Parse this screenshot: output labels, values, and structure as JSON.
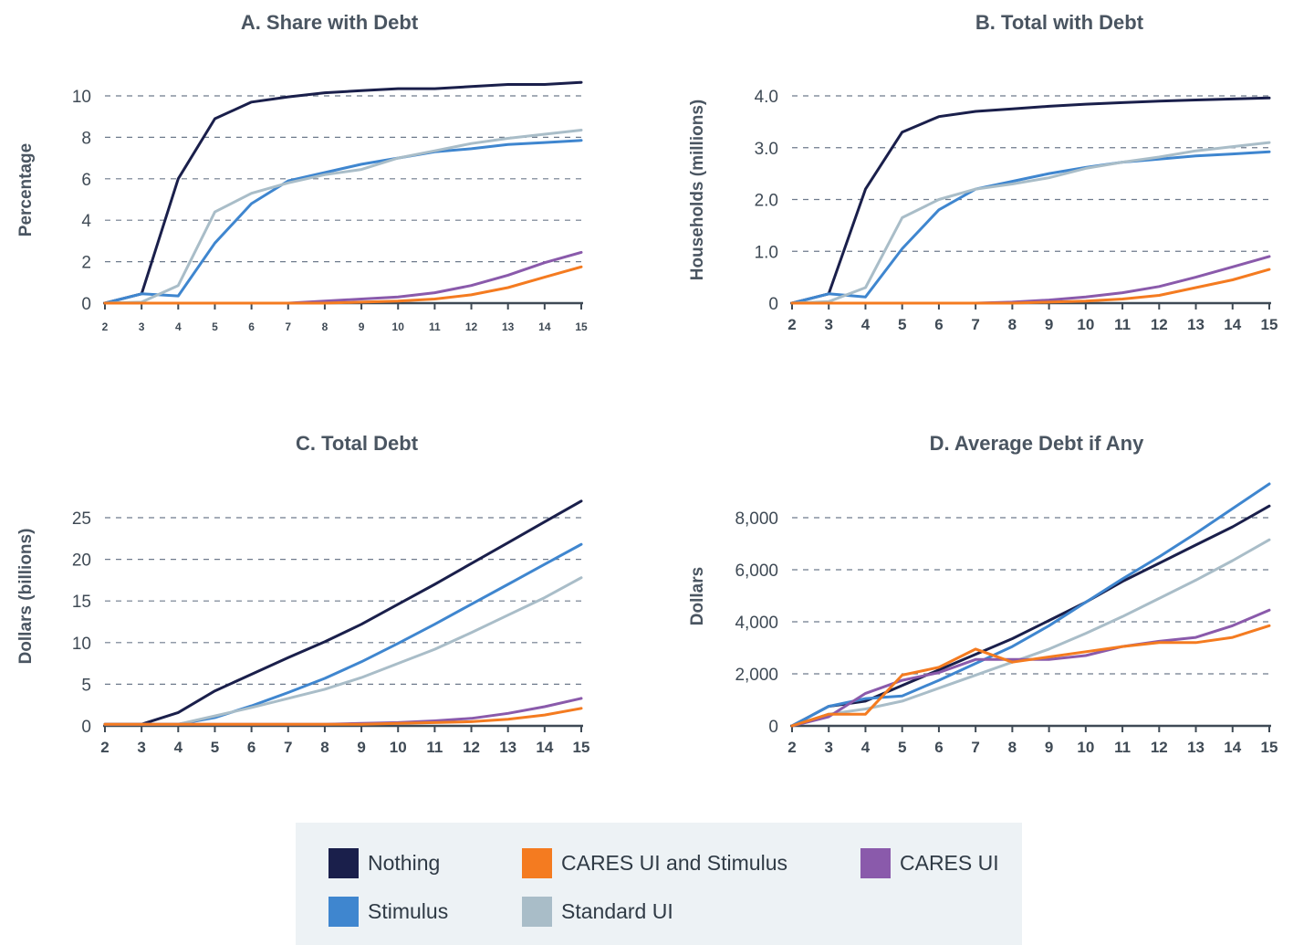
{
  "colors": {
    "Nothing": "#1a1f4b",
    "Stimulus": "#3f86cf",
    "Standard UI": "#a9bdc8",
    "CARES UI": "#8a5aab",
    "CARES UI and Stimulus": "#f47b20"
  },
  "legend": {
    "items": [
      {
        "key": "Nothing",
        "label": "Nothing"
      },
      {
        "key": "CARES UI and Stimulus",
        "label": "CARES UI and Stimulus"
      },
      {
        "key": "CARES UI",
        "label": "CARES UI"
      },
      {
        "key": "Stimulus",
        "label": "Stimulus"
      },
      {
        "key": "Standard UI",
        "label": "Standard UI"
      }
    ]
  },
  "chart_data": [
    {
      "id": "A",
      "type": "line",
      "title": "A. Share with Debt",
      "xlabel": "",
      "ylabel": "Percentage",
      "x": [
        2,
        3,
        4,
        5,
        6,
        7,
        8,
        9,
        10,
        11,
        12,
        13,
        14,
        15
      ],
      "xticks": [
        "2",
        "3",
        "4",
        "5",
        "6",
        "7",
        "8",
        "9",
        "10",
        "11",
        "12",
        "13",
        "14",
        "15"
      ],
      "yticks": [
        0,
        2,
        4,
        6,
        8,
        10
      ],
      "ytick_labels": [
        "0",
        "2",
        "4",
        "6",
        "8",
        "10"
      ],
      "ylim": [
        0,
        10
      ],
      "grid": true,
      "series": [
        {
          "name": "Nothing",
          "values": [
            0,
            0.45,
            6.0,
            8.9,
            9.7,
            9.95,
            10.15,
            10.25,
            10.35,
            10.35,
            10.45,
            10.55,
            10.55,
            10.65
          ]
        },
        {
          "name": "Stimulus",
          "values": [
            0,
            0.45,
            0.35,
            2.9,
            4.8,
            5.9,
            6.3,
            6.7,
            7.0,
            7.3,
            7.45,
            7.65,
            7.75,
            7.85
          ]
        },
        {
          "name": "Standard UI",
          "values": [
            0,
            0.05,
            0.85,
            4.4,
            5.3,
            5.8,
            6.2,
            6.45,
            7.0,
            7.35,
            7.7,
            7.95,
            8.15,
            8.35
          ]
        },
        {
          "name": "CARES UI",
          "values": [
            0,
            0,
            0,
            0,
            0,
            0,
            0.1,
            0.2,
            0.3,
            0.5,
            0.85,
            1.35,
            1.95,
            2.45
          ]
        },
        {
          "name": "CARES UI and Stimulus",
          "values": [
            0,
            0,
            0,
            0,
            0,
            0,
            0,
            0.05,
            0.1,
            0.2,
            0.4,
            0.75,
            1.25,
            1.75
          ]
        }
      ]
    },
    {
      "id": "B",
      "type": "line",
      "title": "B. Total with Debt",
      "xlabel": "",
      "ylabel": "Households (millions)",
      "x": [
        2,
        3,
        4,
        5,
        6,
        7,
        8,
        9,
        10,
        11,
        12,
        13,
        14,
        15
      ],
      "xticks": [
        "2",
        "3",
        "4",
        "5",
        "6",
        "7",
        "8",
        "9",
        "10",
        "11",
        "12",
        "13",
        "14",
        "15"
      ],
      "yticks": [
        0,
        1,
        2,
        3,
        4
      ],
      "ytick_labels": [
        "0",
        "1.0",
        "2.0",
        "3.0",
        "4.0"
      ],
      "ylim": [
        0,
        4
      ],
      "grid": true,
      "series": [
        {
          "name": "Nothing",
          "values": [
            0,
            0.18,
            2.2,
            3.3,
            3.6,
            3.7,
            3.75,
            3.8,
            3.84,
            3.87,
            3.9,
            3.92,
            3.94,
            3.96
          ]
        },
        {
          "name": "Stimulus",
          "values": [
            0,
            0.18,
            0.12,
            1.05,
            1.8,
            2.2,
            2.35,
            2.5,
            2.62,
            2.72,
            2.78,
            2.84,
            2.88,
            2.92
          ]
        },
        {
          "name": "Standard UI",
          "values": [
            0,
            0.03,
            0.3,
            1.65,
            2.0,
            2.2,
            2.3,
            2.42,
            2.6,
            2.72,
            2.82,
            2.94,
            3.02,
            3.1
          ]
        },
        {
          "name": "CARES UI",
          "values": [
            0,
            0,
            0,
            0,
            0,
            0,
            0.02,
            0.06,
            0.12,
            0.2,
            0.32,
            0.5,
            0.7,
            0.9
          ]
        },
        {
          "name": "CARES UI and Stimulus",
          "values": [
            0,
            0,
            0,
            0,
            0,
            0,
            0,
            0.02,
            0.04,
            0.08,
            0.15,
            0.3,
            0.45,
            0.65
          ]
        }
      ]
    },
    {
      "id": "C",
      "type": "line",
      "title": "C. Total Debt",
      "xlabel": "",
      "ylabel": "Dollars (billions)",
      "x": [
        2,
        3,
        4,
        5,
        6,
        7,
        8,
        9,
        10,
        11,
        12,
        13,
        14,
        15
      ],
      "xticks": [
        "2",
        "3",
        "4",
        "5",
        "6",
        "7",
        "8",
        "9",
        "10",
        "11",
        "12",
        "13",
        "14",
        "15"
      ],
      "yticks": [
        0,
        5,
        10,
        15,
        20,
        25
      ],
      "ytick_labels": [
        "0",
        "5",
        "10",
        "15",
        "20",
        "25"
      ],
      "ylim": [
        0,
        25
      ],
      "grid": true,
      "series": [
        {
          "name": "Nothing",
          "values": [
            0.2,
            0.2,
            1.6,
            4.2,
            6.2,
            8.2,
            10.1,
            12.2,
            14.6,
            17.0,
            19.5,
            22.0,
            24.5,
            27.0
          ]
        },
        {
          "name": "Stimulus",
          "values": [
            0.2,
            0.2,
            0.2,
            1.0,
            2.4,
            4.0,
            5.7,
            7.7,
            9.9,
            12.2,
            14.6,
            17.0,
            19.4,
            21.8
          ]
        },
        {
          "name": "Standard UI",
          "values": [
            0.2,
            0.2,
            0.2,
            1.2,
            2.2,
            3.3,
            4.4,
            5.8,
            7.5,
            9.2,
            11.2,
            13.3,
            15.4,
            17.8
          ]
        },
        {
          "name": "CARES UI",
          "values": [
            0.2,
            0.2,
            0.2,
            0.2,
            0.2,
            0.2,
            0.2,
            0.3,
            0.4,
            0.6,
            0.9,
            1.5,
            2.3,
            3.3
          ]
        },
        {
          "name": "CARES UI and Stimulus",
          "values": [
            0.2,
            0.2,
            0.2,
            0.2,
            0.2,
            0.2,
            0.2,
            0.2,
            0.3,
            0.4,
            0.5,
            0.8,
            1.3,
            2.1
          ]
        }
      ]
    },
    {
      "id": "D",
      "type": "line",
      "title": "D. Average Debt if Any",
      "xlabel": "",
      "ylabel": "Dollars",
      "x": [
        2,
        3,
        4,
        5,
        6,
        7,
        8,
        9,
        10,
        11,
        12,
        13,
        14,
        15
      ],
      "xticks": [
        "2",
        "3",
        "4",
        "5",
        "6",
        "7",
        "8",
        "9",
        "10",
        "11",
        "12",
        "13",
        "14",
        "15"
      ],
      "yticks": [
        0,
        2000,
        4000,
        6000,
        8000
      ],
      "ytick_labels": [
        "0",
        "2,000",
        "4,000",
        "6,000",
        "8,000"
      ],
      "ylim": [
        0,
        8000
      ],
      "grid": true,
      "series": [
        {
          "name": "Standard UI",
          "values": [
            0,
            450,
            650,
            950,
            1450,
            1950,
            2450,
            2950,
            3550,
            4200,
            4900,
            5600,
            6350,
            7150
          ]
        },
        {
          "name": "Nothing",
          "values": [
            0,
            750,
            950,
            1550,
            2150,
            2750,
            3350,
            4050,
            4750,
            5550,
            6250,
            6950,
            7650,
            8450
          ]
        },
        {
          "name": "Stimulus",
          "values": [
            0,
            750,
            1050,
            1150,
            1750,
            2400,
            3050,
            3850,
            4750,
            5650,
            6500,
            7400,
            8350,
            9300
          ]
        },
        {
          "name": "CARES UI",
          "values": [
            0,
            350,
            1250,
            1750,
            2050,
            2550,
            2550,
            2550,
            2700,
            3050,
            3250,
            3400,
            3850,
            4450
          ]
        },
        {
          "name": "CARES UI and Stimulus",
          "values": [
            0,
            450,
            450,
            1950,
            2250,
            2950,
            2450,
            2650,
            2850,
            3050,
            3200,
            3200,
            3400,
            3850
          ]
        }
      ]
    }
  ]
}
